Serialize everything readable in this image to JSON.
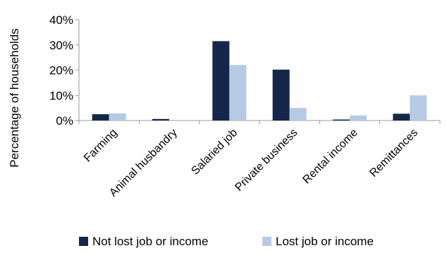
{
  "chart_data": {
    "type": "bar",
    "ylabel": "Percentage of  households",
    "xlabel": "",
    "ylim": [
      0,
      40
    ],
    "y_tick_labels": [
      "0%",
      "10%",
      "20%",
      "30%",
      "40%"
    ],
    "y_ticks": [
      0,
      10,
      20,
      30,
      40
    ],
    "categories": [
      "Farming",
      "Animal husbandry",
      "Salaried job",
      "Private business",
      "Rental income",
      "Remittances"
    ],
    "series": [
      {
        "name": "Not lost job or income",
        "color": "#14274a",
        "values": [
          2.5,
          0.6,
          31.5,
          20.2,
          0.4,
          2.7
        ]
      },
      {
        "name": "Lost job or income",
        "color": "#b6cae3",
        "values": [
          2.8,
          0.0,
          22.0,
          5.0,
          2.0,
          10.0
        ]
      }
    ],
    "grid": false,
    "legend_position": "bottom"
  }
}
